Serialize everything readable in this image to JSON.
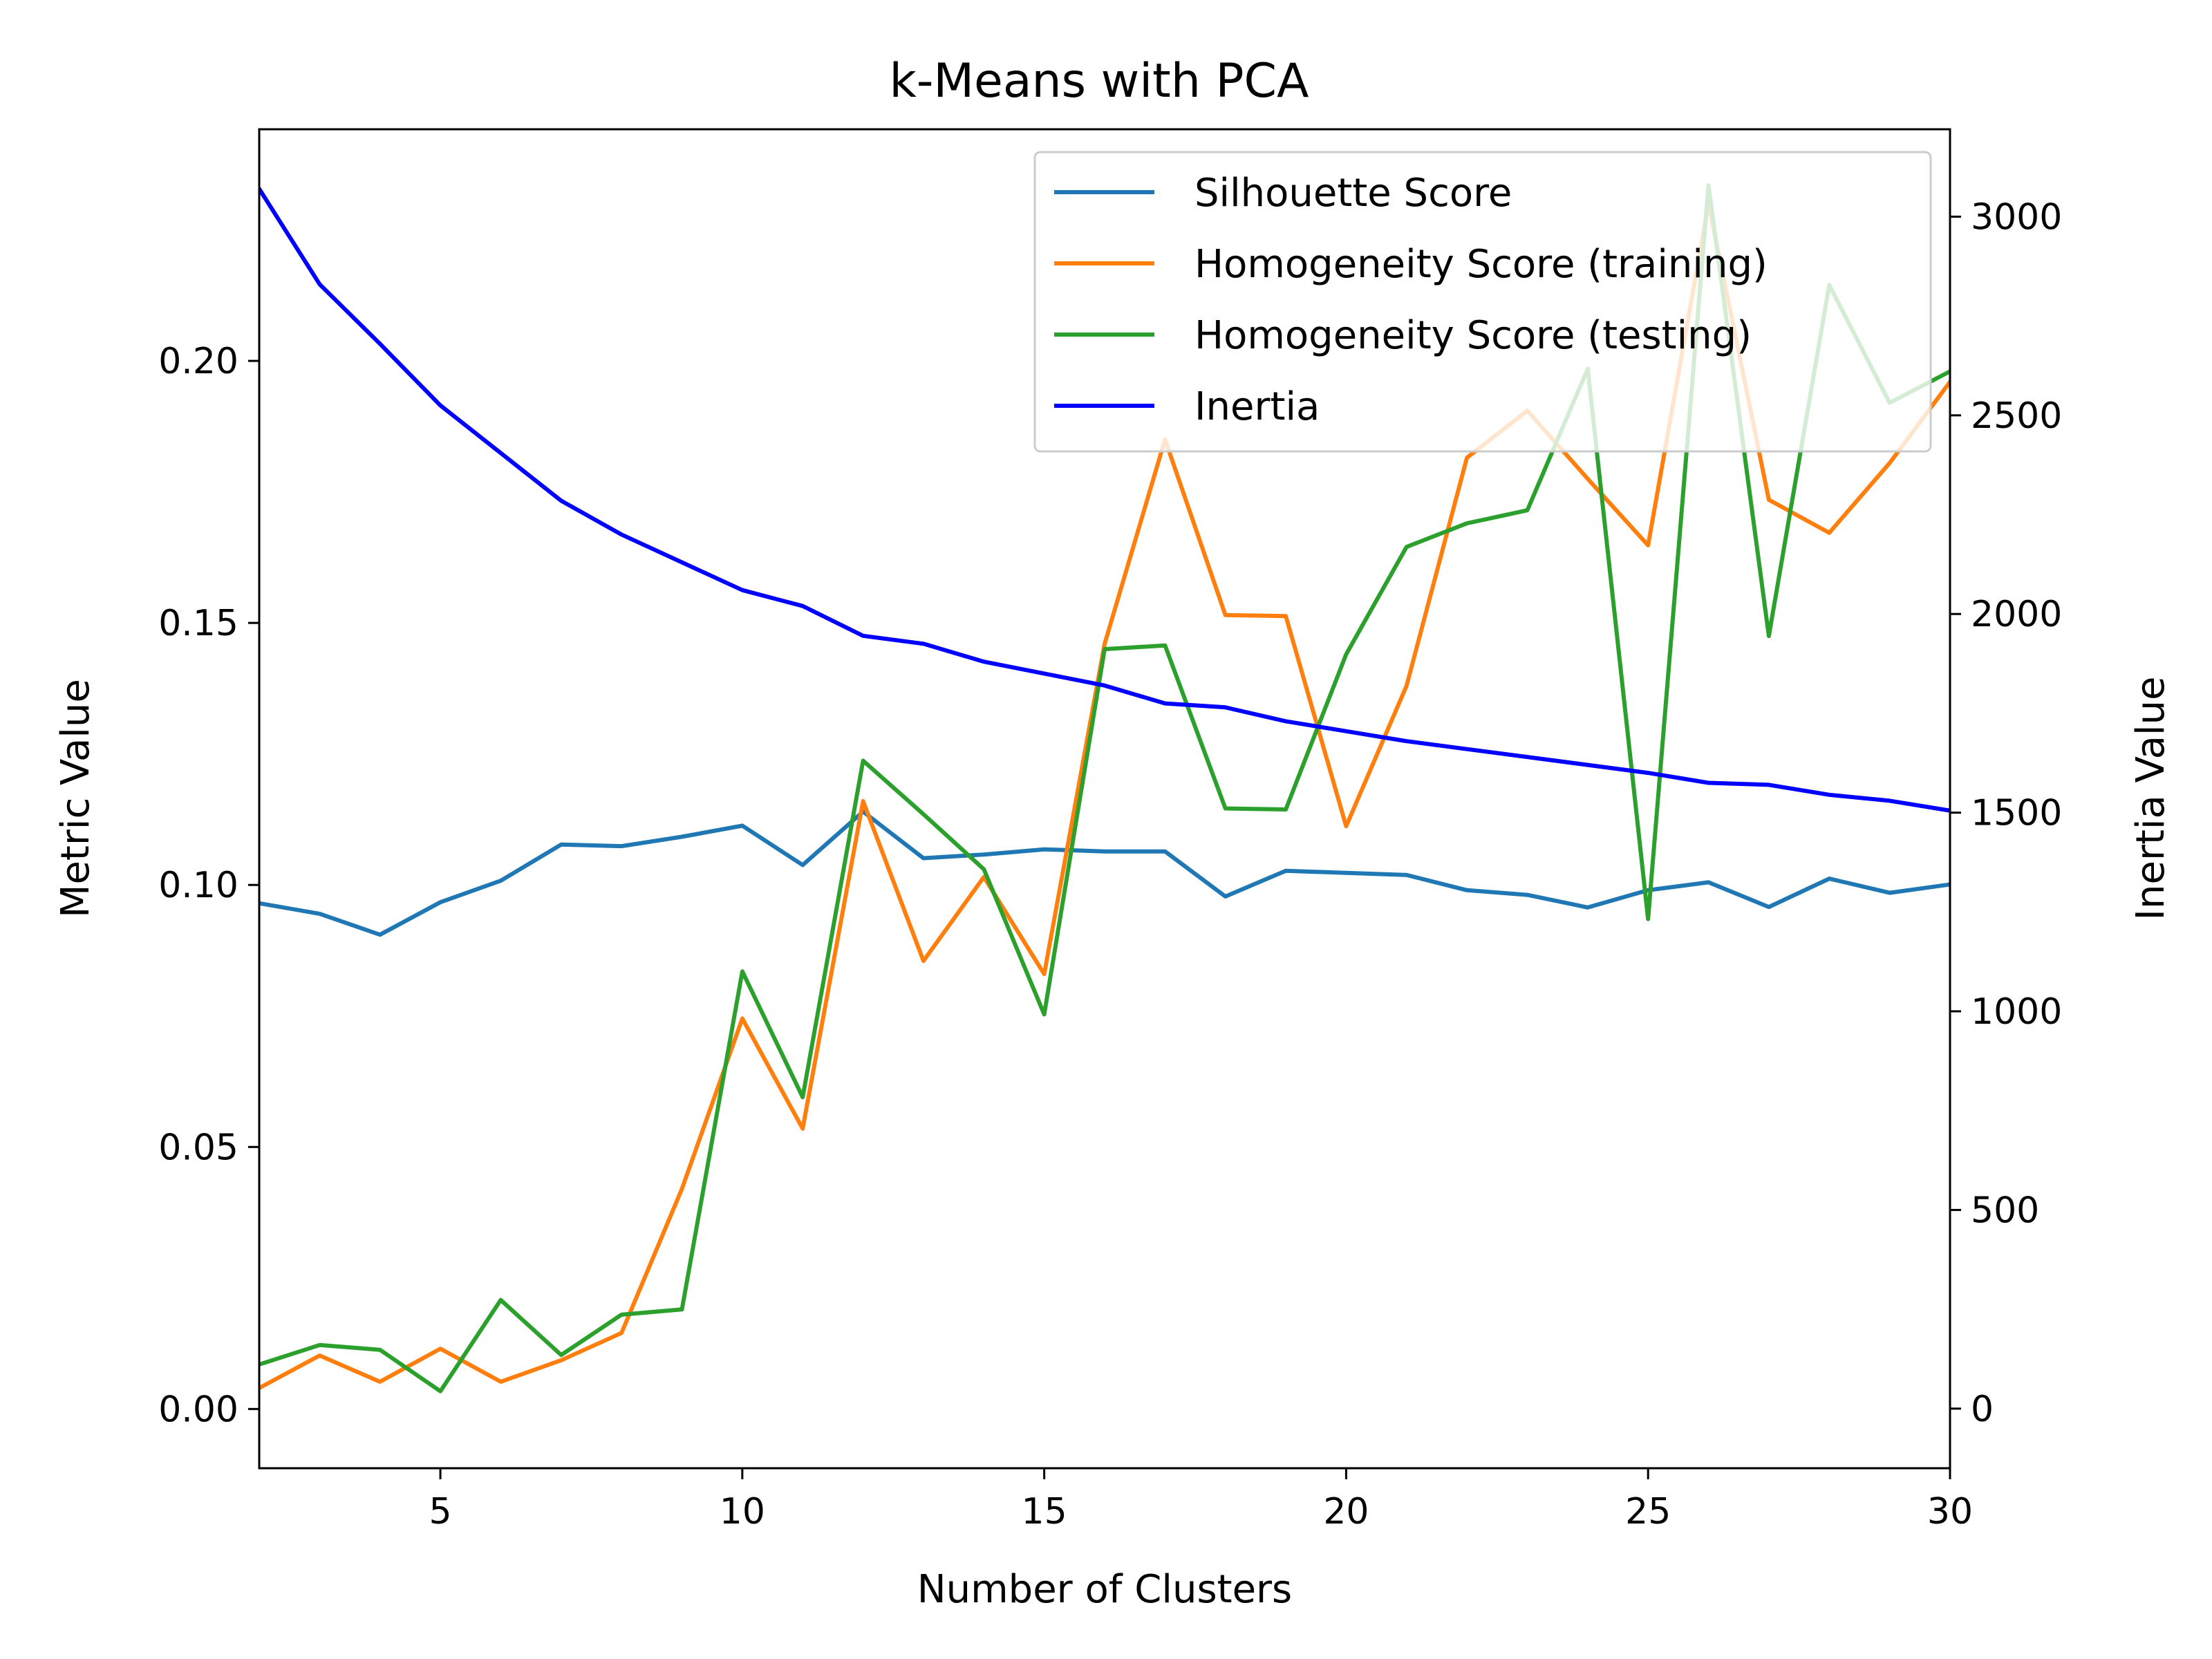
{
  "chart_data": {
    "type": "line",
    "title": "k-Means with PCA",
    "xlabel": "Number of Clusters",
    "ylabel": "Metric Value",
    "y2label": "Inertia Value",
    "xlim": [
      2,
      30
    ],
    "ylim": [
      -0.0113,
      0.2442
    ],
    "y2lim": [
      -150,
      3220
    ],
    "x_ticks": [
      5,
      10,
      15,
      20,
      25,
      30
    ],
    "y_ticks": [
      0.0,
      0.05,
      0.1,
      0.15,
      0.2
    ],
    "y_tick_labels": [
      "0.00",
      "0.05",
      "0.10",
      "0.15",
      "0.20"
    ],
    "y2_ticks": [
      0,
      500,
      1000,
      1500,
      2000,
      2500,
      3000
    ],
    "y2_tick_labels": [
      "0",
      "500",
      "1000",
      "1500",
      "2000",
      "2500",
      "3000"
    ],
    "grid": false,
    "legend_position": "top-right",
    "x": [
      2,
      3,
      4,
      5,
      6,
      7,
      8,
      9,
      10,
      11,
      12,
      13,
      14,
      15,
      16,
      17,
      18,
      19,
      20,
      21,
      22,
      23,
      24,
      25,
      26,
      27,
      28,
      29,
      30
    ],
    "series": [
      {
        "name": "Silhouette Score",
        "axis": "left",
        "color": "#1f77b4",
        "values": [
          0.0965,
          0.0945,
          0.0905,
          0.0967,
          0.1008,
          0.1077,
          0.1074,
          0.1092,
          0.1113,
          0.1038,
          0.114,
          0.1051,
          0.1058,
          0.1068,
          0.1064,
          0.1064,
          0.0978,
          0.1027,
          0.1023,
          0.1019,
          0.099,
          0.0981,
          0.0957,
          0.099,
          0.1005,
          0.0958,
          0.1012,
          0.0985,
          0.1001
        ]
      },
      {
        "name": "Homogeneity Score (training)",
        "axis": "left",
        "color": "#ff7f0e",
        "values": [
          0.004,
          0.0102,
          0.0052,
          0.0115,
          0.0052,
          0.0093,
          0.0145,
          0.042,
          0.0745,
          0.0535,
          0.116,
          0.0855,
          0.1015,
          0.083,
          0.146,
          0.185,
          0.1515,
          0.1513,
          0.1112,
          0.138,
          0.1815,
          0.1905,
          0.1775,
          0.1648,
          0.23,
          0.1735,
          0.1672,
          0.1805,
          0.196
        ]
      },
      {
        "name": "Homogeneity Score (testing)",
        "axis": "left",
        "color": "#2ca02c",
        "values": [
          0.0085,
          0.0122,
          0.0113,
          0.0034,
          0.0208,
          0.0103,
          0.018,
          0.019,
          0.0835,
          0.0595,
          0.1237,
          0.1135,
          0.103,
          0.0753,
          0.145,
          0.1457,
          0.1146,
          0.1144,
          0.144,
          0.1645,
          0.169,
          0.1715,
          0.1985,
          0.0935,
          0.2335,
          0.1475,
          0.2145,
          0.192,
          0.198
        ]
      },
      {
        "name": "Inertia",
        "axis": "right",
        "color": "#0000ff",
        "values": [
          3070,
          2830,
          2680,
          2525,
          2405,
          2285,
          2200,
          2130,
          2060,
          2020,
          1945,
          1925,
          1880,
          1850,
          1820,
          1775,
          1765,
          1730,
          1705,
          1680,
          1660,
          1640,
          1620,
          1600,
          1575,
          1570,
          1545,
          1530,
          1505
        ]
      }
    ]
  }
}
